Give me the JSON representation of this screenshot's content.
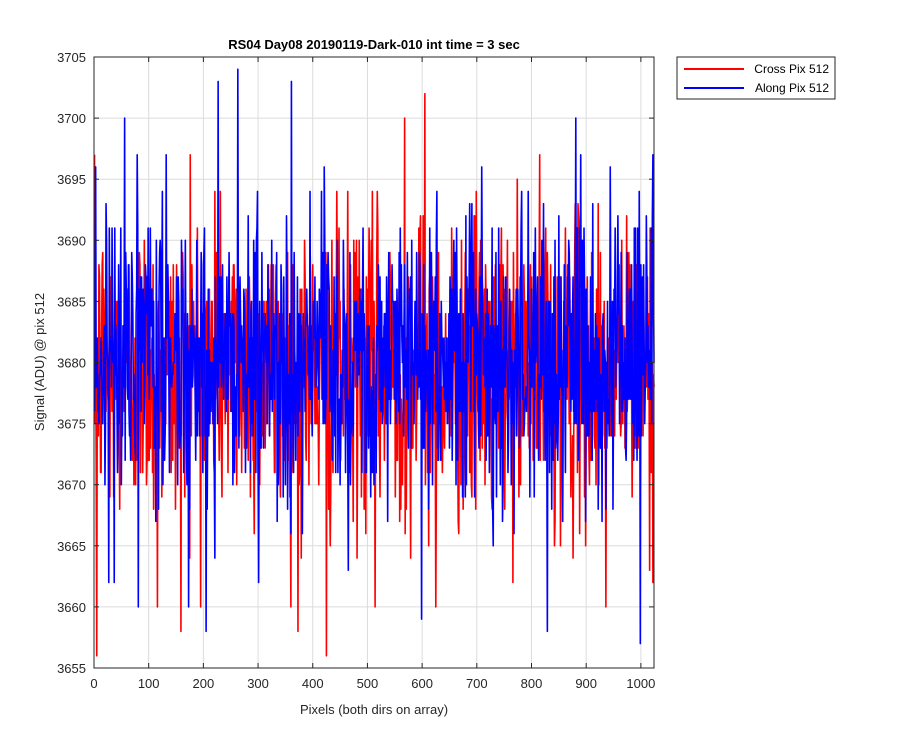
{
  "chart_data": {
    "type": "line",
    "title": "RS04 Day08 20190119-Dark-010 int time = 3 sec",
    "xlabel": "Pixels (both dirs on array)",
    "ylabel": "Signal (ADU) @ pix 512",
    "xlim": [
      0,
      1024
    ],
    "ylim": [
      3655,
      3705
    ],
    "xticks": [
      0,
      100,
      200,
      300,
      400,
      500,
      600,
      700,
      800,
      900,
      1000
    ],
    "yticks": [
      3655,
      3660,
      3665,
      3670,
      3675,
      3680,
      3685,
      3690,
      3695,
      3700,
      3705
    ],
    "grid": true,
    "legend_position": "outside-top-right",
    "series": [
      {
        "name": "Cross Pix 512",
        "color": "#ff0000",
        "mean": 3679.5,
        "noise_sigma": 6.2,
        "peaks": [
          [
            4,
            3656
          ],
          [
            28,
            3669
          ],
          [
            115,
            3660
          ],
          [
            158,
            3658
          ],
          [
            175,
            3697
          ],
          [
            220,
            3694
          ],
          [
            372,
            3658
          ],
          [
            424,
            3656
          ],
          [
            513,
            3660
          ],
          [
            567,
            3700
          ],
          [
            604,
            3702
          ],
          [
            624,
            3660
          ],
          [
            935,
            3660
          ],
          [
            1015,
            3663
          ]
        ]
      },
      {
        "name": "Along Pix 512",
        "color": "#0000ff",
        "mean": 3680.5,
        "noise_sigma": 6.0,
        "peaks": [
          [
            2,
            3696
          ],
          [
            55,
            3700
          ],
          [
            80,
            3660
          ],
          [
            204,
            3658
          ],
          [
            226,
            3703
          ],
          [
            262,
            3704
          ],
          [
            300,
            3662
          ],
          [
            360,
            3703
          ],
          [
            598,
            3659
          ],
          [
            828,
            3658
          ],
          [
            880,
            3700
          ],
          [
            998,
            3657
          ],
          [
            1020,
            3692
          ]
        ]
      }
    ]
  }
}
